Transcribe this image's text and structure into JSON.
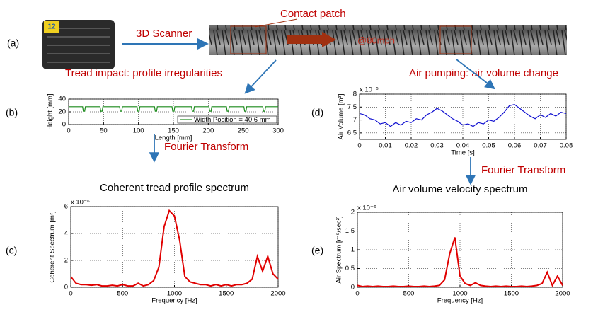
{
  "diagram": {
    "panels": [
      "(a)",
      "(b)",
      "(c)",
      "(d)",
      "(e)"
    ],
    "tire_badge": "12",
    "scanner": "3D Scanner",
    "contact_patch": "Contact patch",
    "speed": "@80mph",
    "tread_impact": "Tread impact: profile irregularities",
    "air_pumping": "Air pumping: air volume change",
    "fourier_left": "Fourier Transform",
    "fourier_right": "Fourier Transform"
  },
  "chart_data": [
    {
      "type": "line",
      "xlabel": "Length [mm]",
      "ylabel": "Height [mm]",
      "x": [
        0,
        20,
        21,
        23,
        24,
        45,
        46,
        48,
        49,
        73,
        74,
        76,
        77,
        98,
        99,
        101,
        102,
        123,
        124,
        126,
        127,
        148,
        149,
        151,
        152,
        176,
        177,
        179,
        180,
        201,
        202,
        204,
        205,
        226,
        227,
        229,
        230,
        251,
        252,
        254,
        255,
        278,
        279,
        281,
        282,
        300
      ],
      "series": [
        {
          "name": "Width Position = 40.6 mm",
          "color": "#1a8a1a",
          "values": [
            28,
            28,
            21,
            21,
            28,
            28,
            21,
            21,
            28,
            28,
            21,
            21,
            28,
            28,
            21,
            21,
            28,
            28,
            21,
            21,
            28,
            28,
            21,
            21,
            28,
            28,
            21,
            21,
            28,
            28,
            21,
            21,
            28,
            28,
            21,
            21,
            28,
            28,
            21,
            21,
            28,
            28,
            21,
            21,
            28,
            28
          ]
        }
      ],
      "xlim": [
        0,
        300
      ],
      "ylim": [
        0,
        40
      ],
      "xticks": [
        0,
        50,
        100,
        150,
        200,
        250,
        300
      ],
      "yticks": [
        0,
        20,
        40
      ],
      "grid": true,
      "legend": "lower right"
    },
    {
      "type": "line",
      "title": "Coherent tread profile spectrum",
      "xlabel": "Frequency [Hz]",
      "ylabel": "Coherent Spectrum [m²]",
      "exponent": "x 10⁻⁶",
      "x": [
        0,
        50,
        100,
        150,
        200,
        250,
        300,
        350,
        400,
        450,
        500,
        550,
        600,
        650,
        700,
        750,
        800,
        850,
        900,
        950,
        1000,
        1050,
        1100,
        1150,
        1200,
        1250,
        1300,
        1350,
        1400,
        1450,
        1500,
        1550,
        1600,
        1650,
        1700,
        1750,
        1800,
        1850,
        1900,
        1950,
        2000
      ],
      "series": [
        {
          "color": "#e00000",
          "values": [
            0.8,
            0.3,
            0.2,
            0.2,
            0.15,
            0.2,
            0.1,
            0.1,
            0.15,
            0.1,
            0.2,
            0.1,
            0.1,
            0.3,
            0.1,
            0.2,
            0.5,
            1.5,
            4.5,
            5.7,
            5.3,
            3.5,
            0.8,
            0.4,
            0.3,
            0.2,
            0.2,
            0.1,
            0.2,
            0.1,
            0.2,
            0.1,
            0.2,
            0.2,
            0.3,
            0.6,
            2.3,
            1.2,
            2.3,
            1.0,
            0.6
          ]
        }
      ],
      "xlim": [
        0,
        2000
      ],
      "ylim": [
        0,
        6
      ],
      "xticks": [
        0,
        500,
        1000,
        1500,
        2000
      ],
      "yticks": [
        0,
        2,
        4,
        6
      ],
      "grid": true
    },
    {
      "type": "line",
      "xlabel": "Time [s]",
      "ylabel": "Air Volume [m³]",
      "exponent": "x 10⁻⁵",
      "x": [
        0,
        0.002,
        0.004,
        0.006,
        0.008,
        0.01,
        0.012,
        0.014,
        0.016,
        0.018,
        0.02,
        0.022,
        0.024,
        0.026,
        0.028,
        0.03,
        0.032,
        0.034,
        0.036,
        0.038,
        0.04,
        0.042,
        0.044,
        0.046,
        0.048,
        0.05,
        0.052,
        0.054,
        0.056,
        0.058,
        0.06,
        0.062,
        0.064,
        0.066,
        0.068,
        0.07,
        0.072,
        0.074,
        0.076,
        0.078,
        0.08
      ],
      "series": [
        {
          "color": "#1010d0",
          "values": [
            7.25,
            7.2,
            7.05,
            7.0,
            6.85,
            6.9,
            6.75,
            6.9,
            6.8,
            6.95,
            6.9,
            7.05,
            7.0,
            7.2,
            7.3,
            7.45,
            7.35,
            7.2,
            7.05,
            6.95,
            6.8,
            6.85,
            6.75,
            6.9,
            6.85,
            7.0,
            6.95,
            7.1,
            7.3,
            7.55,
            7.6,
            7.45,
            7.3,
            7.15,
            7.05,
            7.2,
            7.1,
            7.25,
            7.15,
            7.3,
            7.25
          ]
        }
      ],
      "xlim": [
        0,
        0.08
      ],
      "ylim": [
        6.25,
        8
      ],
      "xticks": [
        0,
        0.01,
        0.02,
        0.03,
        0.04,
        0.05,
        0.06,
        0.07,
        0.08
      ],
      "yticks": [
        6.5,
        7,
        7.5,
        8
      ],
      "grid": true
    },
    {
      "type": "line",
      "title": "Air volume velocity spectrum",
      "xlabel": "Frequency [Hz]",
      "ylabel": "Air Spectrum [m⁶/sec²]",
      "exponent": "x 10⁻⁶",
      "x": [
        0,
        50,
        100,
        150,
        200,
        250,
        300,
        350,
        400,
        450,
        500,
        550,
        600,
        650,
        700,
        750,
        800,
        850,
        900,
        950,
        1000,
        1050,
        1100,
        1150,
        1200,
        1250,
        1300,
        1350,
        1400,
        1450,
        1500,
        1550,
        1600,
        1650,
        1700,
        1750,
        1800,
        1850,
        1900,
        1950,
        2000
      ],
      "series": [
        {
          "color": "#e00000",
          "values": [
            0.05,
            0.02,
            0.03,
            0.02,
            0.03,
            0.02,
            0.02,
            0.03,
            0.02,
            0.02,
            0.03,
            0.02,
            0.02,
            0.03,
            0.02,
            0.03,
            0.05,
            0.2,
            0.9,
            1.33,
            0.3,
            0.1,
            0.05,
            0.12,
            0.05,
            0.03,
            0.02,
            0.03,
            0.02,
            0.03,
            0.02,
            0.02,
            0.03,
            0.02,
            0.03,
            0.05,
            0.1,
            0.4,
            0.05,
            0.3,
            0.05
          ]
        }
      ],
      "xlim": [
        0,
        2000
      ],
      "ylim": [
        0,
        2
      ],
      "xticks": [
        0,
        500,
        1000,
        1500,
        2000
      ],
      "yticks": [
        0,
        0.5,
        1,
        1.5,
        2
      ],
      "grid": true
    }
  ]
}
